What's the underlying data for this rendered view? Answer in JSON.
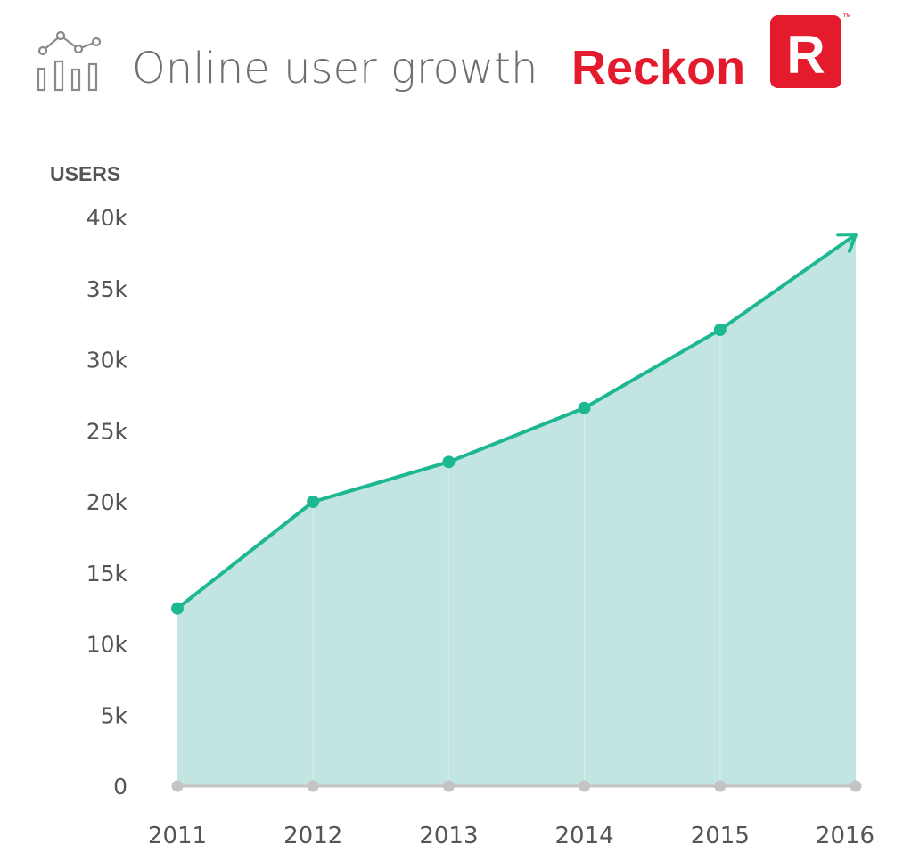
{
  "header": {
    "title": "Online user growth",
    "icon": "chart-growth-icon"
  },
  "brand": {
    "name": "Reckon",
    "badge_letter": "R",
    "trademark": "™",
    "color": "#e31b2d"
  },
  "colors": {
    "line": "#1db892",
    "area": "#c3e5e1",
    "axis": "#c4c4c4",
    "text": "#555555",
    "title": "#6f6f6f"
  },
  "chart_data": {
    "type": "area",
    "ylabel": "USERS",
    "x": [
      "2011",
      "2012",
      "2013",
      "2014",
      "2015",
      "2016"
    ],
    "series": [
      {
        "values": [
          12500,
          20000,
          22800,
          26600,
          32100,
          38800
        ]
      }
    ],
    "ylim": [
      0,
      40000
    ],
    "yticks": [
      {
        "value": 0,
        "label": "0"
      },
      {
        "value": 5000,
        "label": "5k"
      },
      {
        "value": 10000,
        "label": "10k"
      },
      {
        "value": 15000,
        "label": "15k"
      },
      {
        "value": 20000,
        "label": "20k"
      },
      {
        "value": 25000,
        "label": "25k"
      },
      {
        "value": 30000,
        "label": "30k"
      },
      {
        "value": 35000,
        "label": "35k"
      },
      {
        "value": 40000,
        "label": "40k"
      }
    ],
    "grid": false,
    "end_arrow": true
  }
}
